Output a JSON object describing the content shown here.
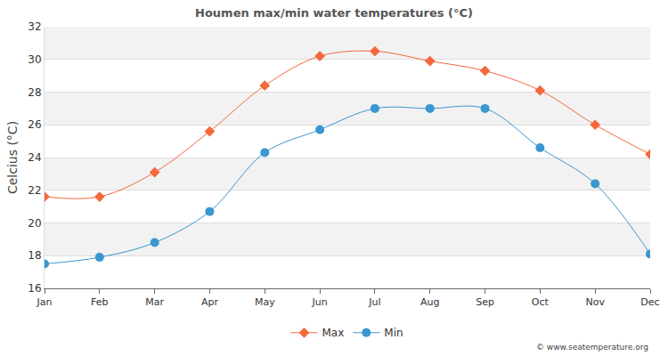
{
  "chart_data": {
    "type": "line",
    "title": "Houmen max/min water temperatures (°C)",
    "y_label": "Celcius (°C)",
    "categories": [
      "Jan",
      "Feb",
      "Mar",
      "Apr",
      "May",
      "Jun",
      "Jul",
      "Aug",
      "Sep",
      "Oct",
      "Nov",
      "Dec"
    ],
    "series": [
      {
        "name": "Max",
        "color": "#f4683c",
        "marker": "diamond",
        "line_style": "spline",
        "values": [
          21.6,
          21.6,
          23.1,
          25.6,
          28.4,
          30.2,
          30.5,
          29.9,
          29.3,
          28.1,
          26.0,
          24.2
        ]
      },
      {
        "name": "Min",
        "color": "#3a97d0",
        "marker": "circle",
        "line_style": "spline",
        "values": [
          17.5,
          17.9,
          18.8,
          20.7,
          24.3,
          25.7,
          27.0,
          27.0,
          27.0,
          24.6,
          22.4,
          18.1
        ]
      }
    ],
    "ylim": [
      16,
      32
    ],
    "yticks": [
      16,
      18,
      20,
      22,
      24,
      26,
      28,
      30,
      32
    ],
    "grid": true,
    "legend": "bottom",
    "annotations": [
      "© www.seatemperature.org"
    ]
  }
}
